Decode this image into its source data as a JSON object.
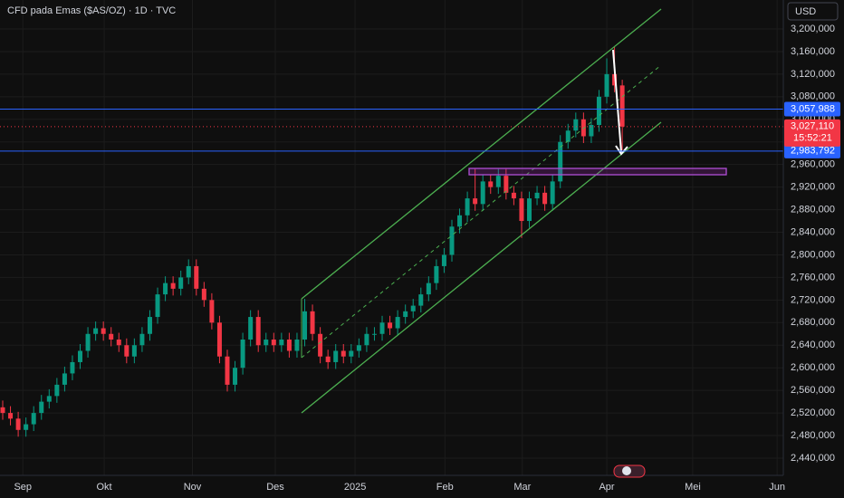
{
  "chart_data": {
    "type": "candlestick",
    "title": "CFD pada Emas ($AS/OZ) · 1D · TVC",
    "currency": "USD",
    "up_color": "#089981",
    "down_color": "#f23645",
    "grid": true,
    "xlim": [
      -0.35,
      100.8
    ],
    "xticks": [
      {
        "value": 2.6,
        "label": "Sep"
      },
      {
        "value": 13.1,
        "label": "Okt"
      },
      {
        "value": 24.5,
        "label": "Nov"
      },
      {
        "value": 35.2,
        "label": "Des"
      },
      {
        "value": 45.5,
        "label": "2025"
      },
      {
        "value": 57.1,
        "label": "Feb"
      },
      {
        "value": 67.1,
        "label": "Mar"
      },
      {
        "value": 78.0,
        "label": "Apr"
      },
      {
        "value": 89.1,
        "label": "Mei"
      },
      {
        "value": 100.0,
        "label": "Jun"
      }
    ],
    "ylim": [
      2409500,
      3251300
    ],
    "yticks": [
      {
        "value": 2440000,
        "label": "2,440,000"
      },
      {
        "value": 2480000,
        "label": "2,480,000"
      },
      {
        "value": 2520000,
        "label": "2,520,000"
      },
      {
        "value": 2560000,
        "label": "2,560,000"
      },
      {
        "value": 2600000,
        "label": "2,600,000"
      },
      {
        "value": 2640000,
        "label": "2,640,000"
      },
      {
        "value": 2680000,
        "label": "2,680,000"
      },
      {
        "value": 2720000,
        "label": "2,720,000"
      },
      {
        "value": 2760000,
        "label": "2,760,000"
      },
      {
        "value": 2800000,
        "label": "2,800,000"
      },
      {
        "value": 2840000,
        "label": "2,840,000"
      },
      {
        "value": 2880000,
        "label": "2,880,000"
      },
      {
        "value": 2920000,
        "label": "2,920,000"
      },
      {
        "value": 2960000,
        "label": "2,960,000"
      },
      {
        "value": 3000000,
        "label": "3,000,000"
      },
      {
        "value": 3040000,
        "label": "3,040,000"
      },
      {
        "value": 3080000,
        "label": "3,080,000"
      },
      {
        "value": 3120000,
        "label": "3,120,000"
      },
      {
        "value": 3160000,
        "label": "3,160,000"
      },
      {
        "value": 3200000,
        "label": "3,200,000"
      }
    ],
    "open": [
      2530000,
      2520000,
      2510000,
      2490000,
      2500000,
      2520000,
      2540000,
      2550000,
      2570000,
      2590000,
      2610000,
      2630000,
      2660000,
      2670000,
      2660000,
      2650000,
      2640000,
      2620000,
      2640000,
      2660000,
      2690000,
      2730000,
      2750000,
      2740000,
      2760000,
      2780000,
      2740000,
      2720000,
      2680000,
      2620000,
      2570000,
      2600000,
      2650000,
      2690000,
      2640000,
      2650000,
      2640000,
      2650000,
      2630000,
      2650000,
      2700000,
      2660000,
      2620000,
      2610000,
      2630000,
      2620000,
      2630000,
      2640000,
      2660000,
      2660000,
      2680000,
      2670000,
      2690000,
      2700000,
      2710000,
      2730000,
      2750000,
      2780000,
      2800000,
      2850000,
      2870000,
      2900000,
      2890000,
      2930000,
      2920000,
      2940000,
      2910000,
      2900000,
      2860000,
      2900000,
      2910000,
      2890000,
      2930000,
      3000000,
      3020000,
      3040000,
      3010000,
      3030000,
      3080000,
      3120000,
      3100000
    ],
    "high": [
      2542000,
      2532000,
      2522000,
      2512000,
      2532000,
      2552000,
      2562000,
      2582000,
      2602000,
      2622000,
      2642000,
      2672000,
      2682000,
      2682000,
      2672000,
      2662000,
      2652000,
      2652000,
      2672000,
      2702000,
      2742000,
      2762000,
      2762000,
      2772000,
      2792000,
      2792000,
      2752000,
      2732000,
      2692000,
      2632000,
      2612000,
      2662000,
      2702000,
      2702000,
      2662000,
      2662000,
      2662000,
      2662000,
      2662000,
      2722000,
      2712000,
      2672000,
      2632000,
      2642000,
      2642000,
      2642000,
      2652000,
      2672000,
      2672000,
      2692000,
      2692000,
      2702000,
      2712000,
      2722000,
      2742000,
      2762000,
      2792000,
      2812000,
      2862000,
      2882000,
      2912000,
      2952000,
      2942000,
      2942000,
      2952000,
      2952000,
      2922000,
      2912000,
      2912000,
      2922000,
      2922000,
      2942000,
      3012000,
      3032000,
      3052000,
      3052000,
      3042000,
      3092000,
      3148000,
      3168000,
      3110000
    ],
    "low": [
      2508000,
      2498000,
      2478000,
      2478000,
      2488000,
      2508000,
      2528000,
      2538000,
      2558000,
      2578000,
      2598000,
      2618000,
      2648000,
      2648000,
      2638000,
      2628000,
      2608000,
      2608000,
      2628000,
      2648000,
      2678000,
      2718000,
      2728000,
      2728000,
      2748000,
      2728000,
      2708000,
      2668000,
      2608000,
      2558000,
      2558000,
      2588000,
      2638000,
      2628000,
      2628000,
      2628000,
      2628000,
      2618000,
      2618000,
      2638000,
      2648000,
      2608000,
      2598000,
      2598000,
      2608000,
      2608000,
      2618000,
      2628000,
      2648000,
      2648000,
      2658000,
      2658000,
      2678000,
      2688000,
      2698000,
      2718000,
      2738000,
      2768000,
      2788000,
      2838000,
      2858000,
      2878000,
      2878000,
      2908000,
      2908000,
      2898000,
      2888000,
      2830000,
      2848000,
      2888000,
      2878000,
      2878000,
      2918000,
      2988000,
      3008000,
      2998000,
      2998000,
      3018000,
      3068000,
      3088000,
      2985000
    ],
    "close": [
      2520000,
      2510000,
      2490000,
      2500000,
      2520000,
      2540000,
      2550000,
      2570000,
      2590000,
      2610000,
      2630000,
      2660000,
      2670000,
      2660000,
      2650000,
      2640000,
      2620000,
      2640000,
      2660000,
      2690000,
      2730000,
      2750000,
      2740000,
      2760000,
      2780000,
      2740000,
      2720000,
      2680000,
      2620000,
      2570000,
      2600000,
      2650000,
      2690000,
      2640000,
      2650000,
      2640000,
      2650000,
      2630000,
      2650000,
      2700000,
      2660000,
      2620000,
      2610000,
      2630000,
      2620000,
      2630000,
      2640000,
      2660000,
      2660000,
      2680000,
      2670000,
      2690000,
      2700000,
      2710000,
      2730000,
      2750000,
      2780000,
      2800000,
      2850000,
      2870000,
      2900000,
      2890000,
      2930000,
      2920000,
      2940000,
      2910000,
      2900000,
      2860000,
      2900000,
      2910000,
      2890000,
      2930000,
      3000000,
      3020000,
      3040000,
      3010000,
      3030000,
      3080000,
      3120000,
      3100000,
      3027110
    ],
    "price_lines": [
      {
        "value": 3057988,
        "label": "3,057,988",
        "color": "#2962ff"
      },
      {
        "value": 2983792,
        "label": "2,983,792",
        "color": "#2962ff"
      }
    ],
    "last_price": {
      "value": 3027110,
      "label": "3,027,110",
      "countdown": "15:52:21",
      "color": "#f23645"
    }
  }
}
